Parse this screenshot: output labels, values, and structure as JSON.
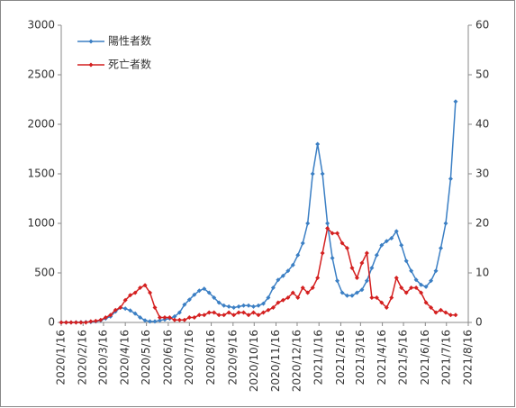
{
  "chart_data": {
    "type": "line",
    "x": [
      "2020/1/16",
      "2020/1/23",
      "2020/1/30",
      "2020/2/6",
      "2020/2/13",
      "2020/2/20",
      "2020/2/27",
      "2020/3/5",
      "2020/3/12",
      "2020/3/19",
      "2020/3/26",
      "2020/4/2",
      "2020/4/9",
      "2020/4/16",
      "2020/4/23",
      "2020/4/30",
      "2020/5/7",
      "2020/5/14",
      "2020/5/21",
      "2020/5/28",
      "2020/6/4",
      "2020/6/11",
      "2020/6/18",
      "2020/6/25",
      "2020/7/2",
      "2020/7/9",
      "2020/7/16",
      "2020/7/23",
      "2020/7/30",
      "2020/8/6",
      "2020/8/13",
      "2020/8/20",
      "2020/8/27",
      "2020/9/3",
      "2020/9/10",
      "2020/9/17",
      "2020/9/24",
      "2020/10/1",
      "2020/10/8",
      "2020/10/15",
      "2020/10/22",
      "2020/10/29",
      "2020/11/5",
      "2020/11/12",
      "2020/11/19",
      "2020/11/26",
      "2020/12/3",
      "2020/12/10",
      "2020/12/17",
      "2020/12/24",
      "2020/12/31",
      "2021/1/7",
      "2021/1/14",
      "2021/1/21",
      "2021/1/28",
      "2021/2/4",
      "2021/2/11",
      "2021/2/18",
      "2021/2/25",
      "2021/3/4",
      "2021/3/11",
      "2021/3/18",
      "2021/3/25",
      "2021/4/1",
      "2021/4/8",
      "2021/4/15",
      "2021/4/22",
      "2021/4/29",
      "2021/5/6",
      "2021/5/13",
      "2021/5/20",
      "2021/5/27",
      "2021/6/3",
      "2021/6/10",
      "2021/6/17",
      "2021/6/24",
      "2021/7/1",
      "2021/7/8",
      "2021/7/15",
      "2021/7/22",
      "2021/7/29"
    ],
    "series": [
      {
        "name": "陽性者数",
        "color": "#3b7fc4",
        "values": [
          0,
          0,
          0,
          1,
          2,
          3,
          5,
          10,
          20,
          40,
          60,
          110,
          150,
          140,
          120,
          90,
          50,
          20,
          10,
          10,
          20,
          30,
          40,
          60,
          100,
          180,
          230,
          280,
          320,
          340,
          300,
          250,
          200,
          170,
          160,
          150,
          160,
          170,
          170,
          160,
          170,
          190,
          250,
          350,
          430,
          470,
          520,
          580,
          680,
          800,
          1000,
          1500,
          1800,
          1500,
          1000,
          650,
          420,
          300,
          270,
          270,
          300,
          330,
          420,
          550,
          680,
          780,
          820,
          850,
          920,
          780,
          620,
          520,
          430,
          380,
          360,
          420,
          520,
          750,
          1000,
          1450,
          2230
        ]
      },
      {
        "name": "死亡者数",
        "color": "#d42020",
        "axis": "y2",
        "values": [
          0,
          0,
          0,
          0,
          0,
          0,
          0.2,
          0.3,
          0.5,
          1,
          1.5,
          2.5,
          3,
          4.5,
          5.5,
          6,
          7,
          7.5,
          6,
          3,
          1,
          1,
          1,
          0.5,
          0.5,
          0.5,
          1,
          1,
          1.5,
          1.5,
          2,
          2,
          1.5,
          1.5,
          2,
          1.5,
          2,
          2,
          1.5,
          2,
          1.5,
          2,
          2.5,
          3,
          4,
          4.5,
          5,
          6,
          5,
          7,
          6,
          7,
          9,
          14,
          19,
          18,
          18,
          16,
          15,
          11,
          9,
          12,
          14,
          5,
          5,
          4,
          3,
          5,
          9,
          7,
          6,
          7,
          7,
          6,
          4,
          3,
          2,
          2.5,
          2,
          1.5,
          1.5
        ]
      }
    ],
    "xlim": [
      "2020/1/16",
      "2021/8/16"
    ],
    "xticks": [
      "2020/1/16",
      "2020/2/16",
      "2020/3/16",
      "2020/4/16",
      "2020/5/16",
      "2020/6/16",
      "2020/7/16",
      "2020/8/16",
      "2020/9/16",
      "2020/10/16",
      "2020/11/16",
      "2020/12/16",
      "2021/1/16",
      "2021/2/16",
      "2021/3/16",
      "2021/4/16",
      "2021/5/16",
      "2021/6/16",
      "2021/7/16",
      "2021/8/16"
    ],
    "ylim": [
      0,
      3000
    ],
    "yticks": [
      0,
      500,
      1000,
      1500,
      2000,
      2500,
      3000
    ],
    "y2lim": [
      0,
      60
    ],
    "y2ticks": [
      0,
      10,
      20,
      30,
      40,
      50,
      60
    ],
    "legend": "upper left"
  }
}
